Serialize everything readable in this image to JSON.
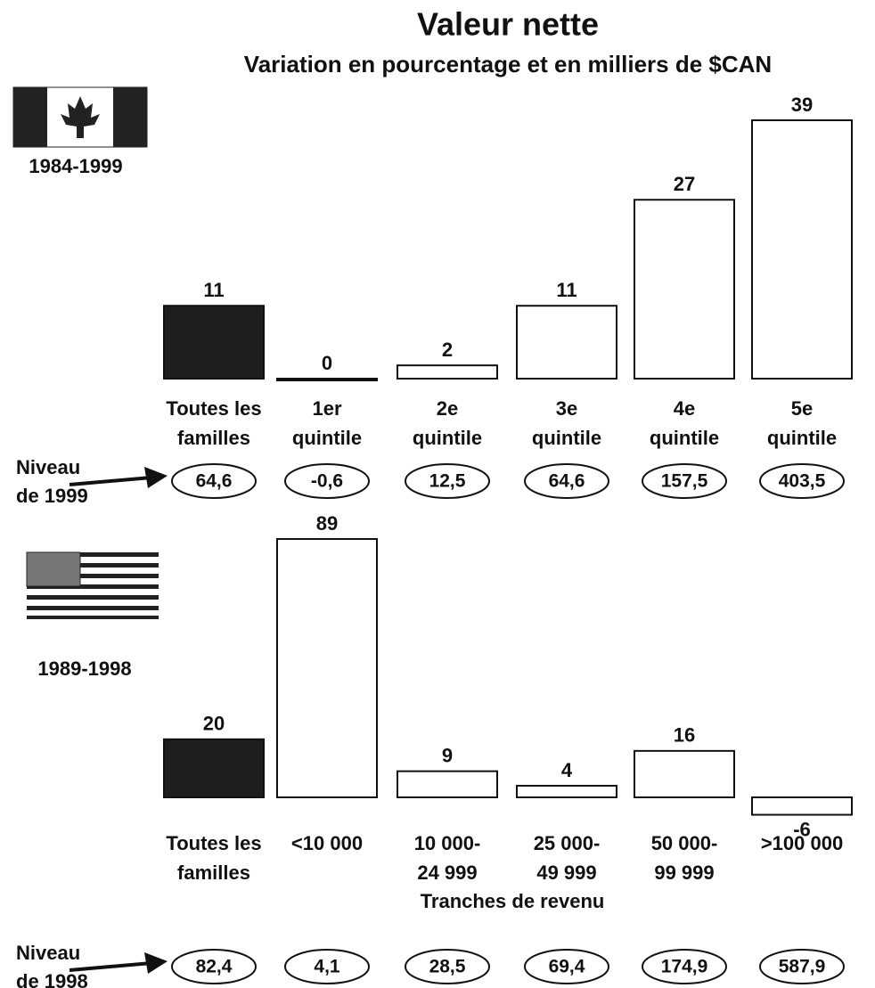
{
  "title": "Valeur nette",
  "subtitle": "Variation en pourcentage et en milliers de $CAN",
  "chart_data": [
    {
      "type": "bar",
      "period": "1984-1999",
      "categories": [
        [
          "Toutes les",
          "familles"
        ],
        [
          "1er",
          "quintile"
        ],
        [
          "2e",
          "quintile"
        ],
        [
          "3e",
          "quintile"
        ],
        [
          "4e",
          "quintile"
        ],
        [
          "5e",
          "quintile"
        ]
      ],
      "values": [
        11,
        0,
        2,
        11,
        27,
        39
      ],
      "colors": [
        "#1e1e1e",
        "#ffffff",
        "#ffffff",
        "#ffffff",
        "#ffffff",
        "#ffffff"
      ],
      "levels": {
        "label": [
          "Niveau",
          "de 1999"
        ],
        "values": [
          64.6,
          -0.6,
          12.5,
          64.6,
          157.5,
          403.5
        ],
        "value_labels": [
          "64,6",
          "-0,6",
          "12,5",
          "64,6",
          "157,5",
          "403,5"
        ]
      }
    },
    {
      "type": "bar",
      "period": "1989-1998",
      "categories": [
        [
          "Toutes les",
          "familles"
        ],
        [
          "<10 000"
        ],
        [
          "10 000-",
          "24 999"
        ],
        [
          "25 000-",
          "49 999"
        ],
        [
          "50 000-",
          "99 999"
        ],
        [
          ">100 000"
        ]
      ],
      "values": [
        20,
        89,
        9,
        4,
        16,
        -6
      ],
      "colors": [
        "#1e1e1e",
        "#ffffff",
        "#ffffff",
        "#ffffff",
        "#ffffff",
        "#ffffff"
      ],
      "xlabel": "Tranches de revenu",
      "levels": {
        "label": [
          "Niveau",
          "de 1998"
        ],
        "values": [
          82.4,
          4.1,
          28.5,
          69.4,
          174.9,
          587.9
        ],
        "value_labels": [
          "82,4",
          "4,1",
          "28,5",
          "69,4",
          "174,9",
          "587,9"
        ]
      }
    }
  ]
}
